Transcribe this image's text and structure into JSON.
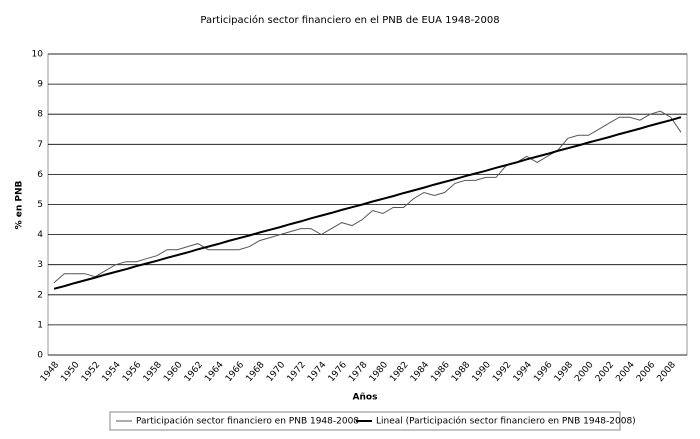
{
  "chart_data": {
    "type": "line",
    "title": "Participación sector financiero en el PNB de EUA 1948-2008",
    "x_label": "Años",
    "y_label": "% en PNB",
    "categories": [
      "1948",
      null,
      "1950",
      null,
      "1952",
      null,
      "1954",
      null,
      "1956",
      null,
      "1958",
      null,
      "1960",
      null,
      "1962",
      null,
      "1964",
      null,
      "1966",
      null,
      "1968",
      null,
      "1970",
      null,
      "1972",
      null,
      "1974",
      null,
      "1976",
      null,
      "1978",
      null,
      "1980",
      null,
      "1982",
      null,
      "1984",
      null,
      "1986",
      null,
      "1988",
      null,
      "1990",
      null,
      "1992",
      null,
      "1994",
      null,
      "1996",
      null,
      "1998",
      null,
      "2000",
      null,
      "2002",
      null,
      "2004",
      null,
      "2006",
      null,
      "2008",
      null
    ],
    "series": [
      {
        "name": "Participación sector financiero en PNB 1948-2008",
        "color": "#555555",
        "values": [
          2.4,
          2.7,
          2.7,
          2.7,
          2.6,
          2.8,
          3.0,
          3.1,
          3.1,
          3.2,
          3.3,
          3.5,
          3.5,
          3.6,
          3.7,
          3.5,
          3.5,
          3.5,
          3.5,
          3.6,
          3.8,
          3.9,
          4.0,
          4.1,
          4.2,
          4.2,
          4.0,
          4.2,
          4.4,
          4.3,
          4.5,
          4.8,
          4.7,
          4.9,
          4.9,
          5.2,
          5.4,
          5.3,
          5.4,
          5.7,
          5.8,
          5.8,
          5.9,
          5.9,
          6.3,
          6.4,
          6.6,
          6.4,
          6.6,
          6.8,
          7.2,
          7.3,
          7.3,
          7.5,
          7.7,
          7.9,
          7.9,
          7.8,
          8.0,
          8.1,
          7.9,
          7.4
        ]
      },
      {
        "name": "Lineal (Participación sector financiero en PNB 1948-2008)",
        "color": "#000000",
        "values": [
          2.2,
          2.29,
          2.39,
          2.48,
          2.57,
          2.67,
          2.76,
          2.85,
          2.95,
          3.04,
          3.13,
          3.23,
          3.32,
          3.41,
          3.51,
          3.6,
          3.69,
          3.79,
          3.88,
          3.97,
          4.07,
          4.16,
          4.25,
          4.35,
          4.44,
          4.54,
          4.63,
          4.72,
          4.82,
          4.91,
          5.0,
          5.1,
          5.19,
          5.28,
          5.38,
          5.47,
          5.56,
          5.66,
          5.75,
          5.84,
          5.94,
          6.03,
          6.12,
          6.22,
          6.31,
          6.4,
          6.5,
          6.59,
          6.68,
          6.78,
          6.87,
          6.96,
          7.06,
          7.15,
          7.24,
          7.34,
          7.43,
          7.52,
          7.62,
          7.71,
          7.8,
          7.9
        ]
      }
    ],
    "ylim": [
      0,
      10
    ],
    "yticks": [
      0,
      1,
      2,
      3,
      4,
      5,
      6,
      7,
      8,
      9,
      10
    ],
    "grid": true,
    "legend": "bottom"
  }
}
